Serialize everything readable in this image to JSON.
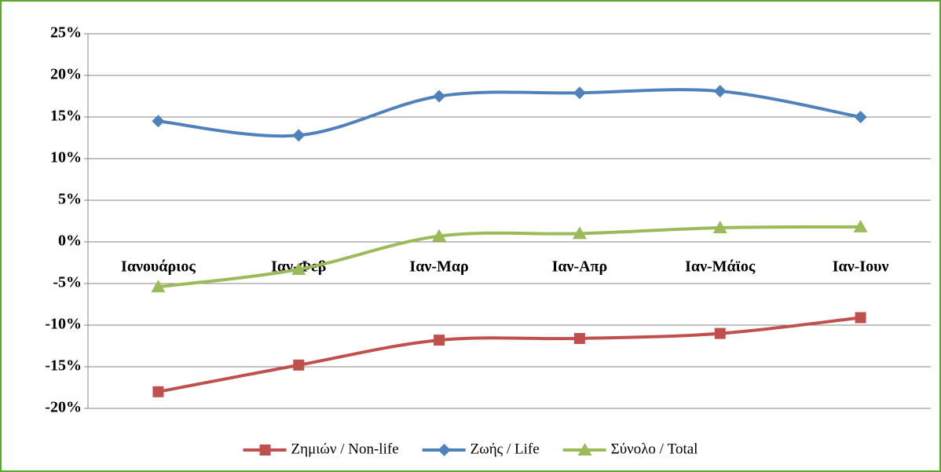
{
  "chart_data": {
    "type": "line",
    "categories": [
      "Ιανουάριος",
      "Ιαν-Φεβ",
      "Ιαν-Μαρ",
      "Ιαν-Απρ",
      "Ιαν-Μάϊος",
      "Ιαν-Ιουν"
    ],
    "series": [
      {
        "name": "Ζημιών / Non-life",
        "color": "#c0504d",
        "marker": "square",
        "values": [
          -18.0,
          -14.8,
          -11.8,
          -11.6,
          -11.0,
          -9.1
        ]
      },
      {
        "name": "Ζωής / Life",
        "color": "#4f81bd",
        "marker": "diamond",
        "values": [
          14.5,
          12.8,
          17.5,
          17.9,
          18.1,
          15.0
        ]
      },
      {
        "name": "Σύνολο / Total",
        "color": "#9bbb59",
        "marker": "triangle",
        "values": [
          -5.4,
          -3.3,
          0.7,
          1.0,
          1.7,
          1.8
        ]
      }
    ],
    "ylim": [
      -20,
      25
    ],
    "yticks": [
      {
        "value": -20,
        "label": "-20%"
      },
      {
        "value": -15,
        "label": "-15%"
      },
      {
        "value": -10,
        "label": "-10%"
      },
      {
        "value": -5,
        "label": "-5%"
      },
      {
        "value": 0,
        "label": "0%"
      },
      {
        "value": 5,
        "label": "5%"
      },
      {
        "value": 10,
        "label": "10%"
      },
      {
        "value": 15,
        "label": "15%"
      },
      {
        "value": 20,
        "label": "20%"
      },
      {
        "value": 25,
        "label": "25%"
      }
    ],
    "grid": true,
    "smooth": true,
    "legend": "bottom"
  }
}
